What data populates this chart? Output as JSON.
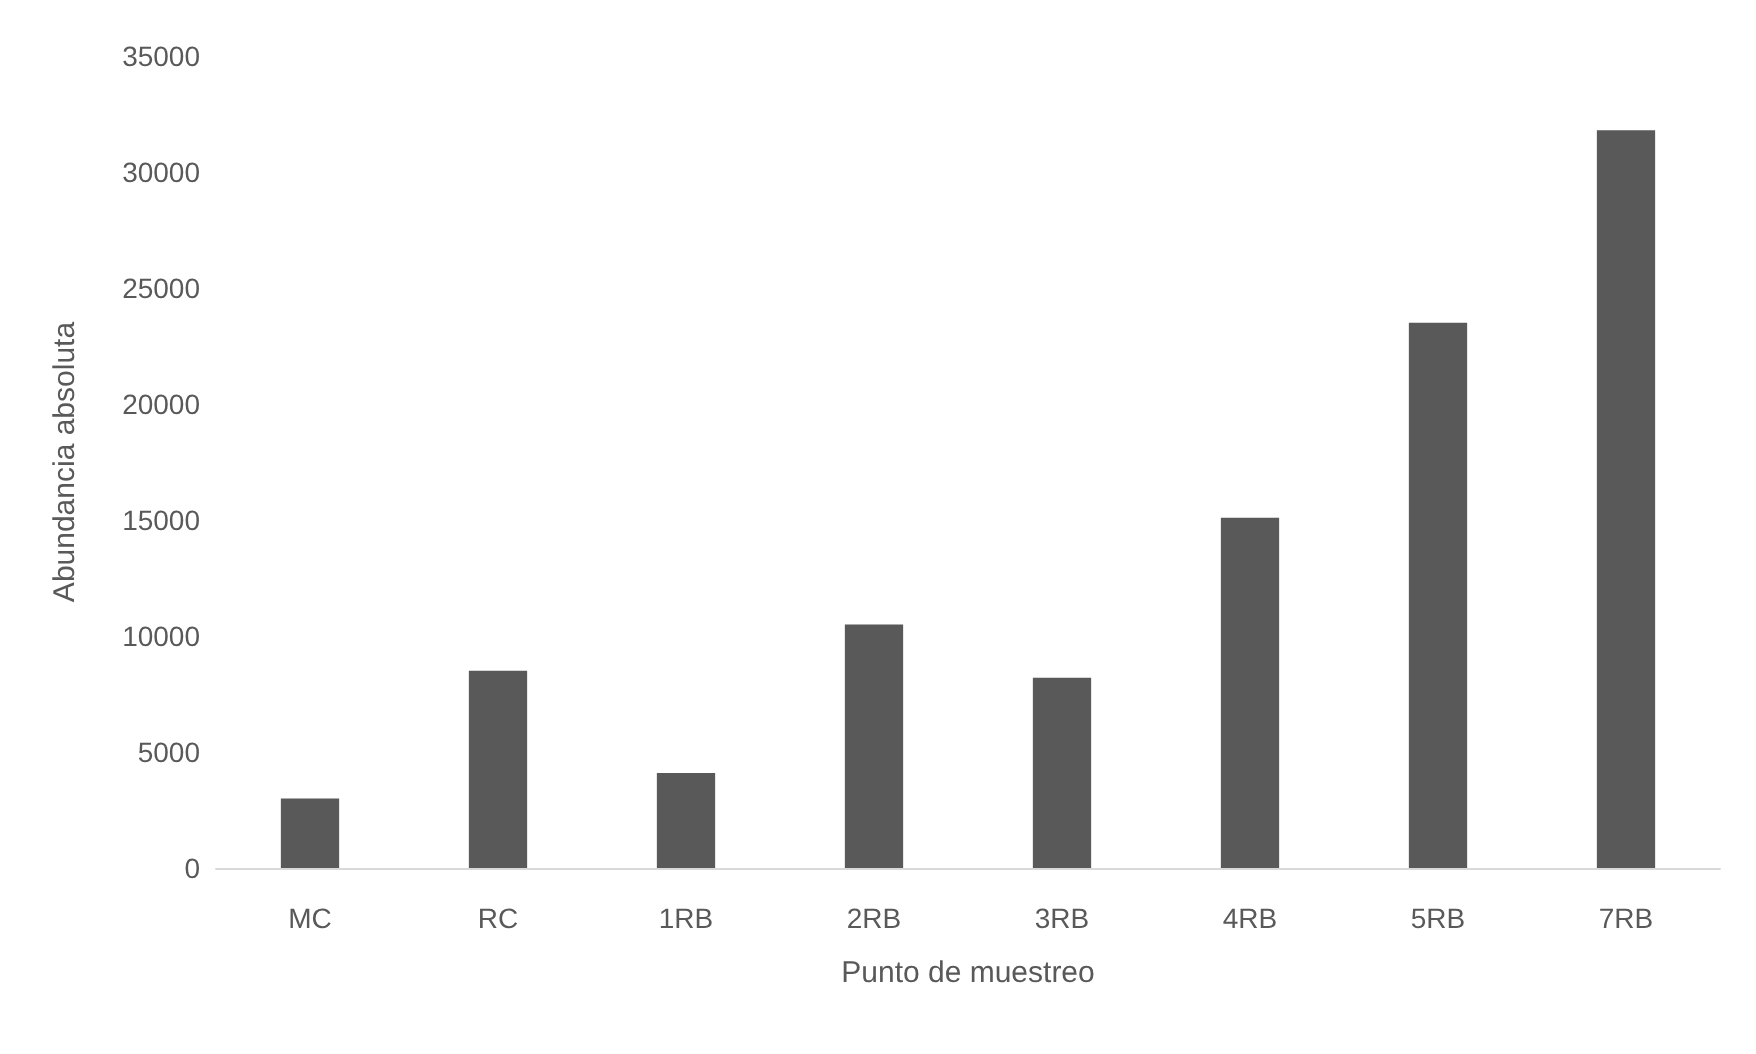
{
  "chart_data": {
    "type": "bar",
    "xlabel": "Punto de muestreo",
    "ylabel": "Abundancia absoluta",
    "categories": [
      "MC",
      "RC",
      "1RB",
      "2RB",
      "3RB",
      "4RB",
      "5RB",
      "7RB"
    ],
    "values": [
      3000,
      8500,
      4100,
      10500,
      8200,
      15100,
      23500,
      31800
    ],
    "color": "#595959",
    "ylim": [
      0,
      35000
    ],
    "yticks": [
      0,
      5000,
      10000,
      15000,
      20000,
      25000,
      30000,
      35000
    ],
    "grid": false
  }
}
